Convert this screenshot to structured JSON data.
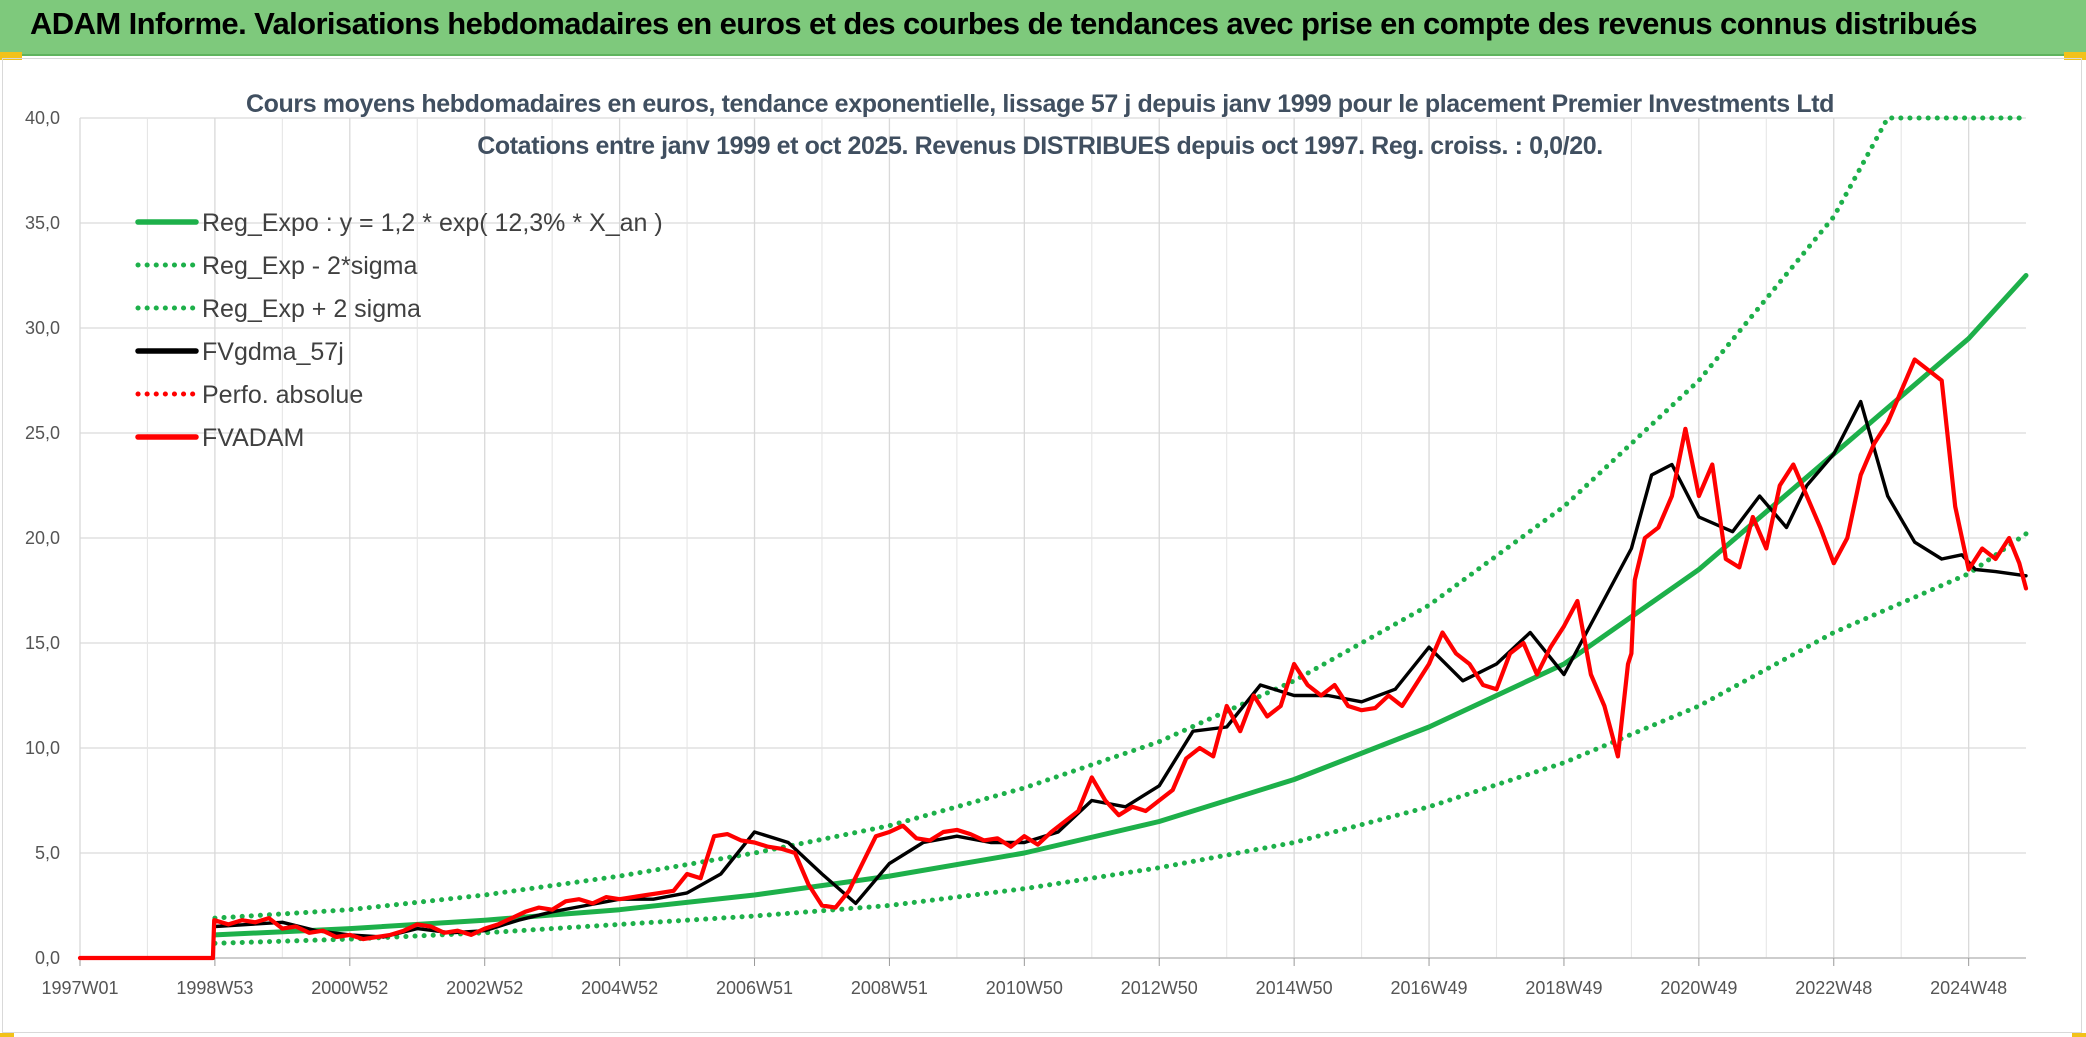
{
  "header": {
    "title": "ADAM Informe. Valorisations hebdomadaires en euros et des courbes de tendances avec prise en compte des revenus connus distribués"
  },
  "chart_data": {
    "type": "line",
    "title": "Cours moyens hebdomadaires en euros, tendance exponentielle, lissage 57 j depuis janv 1999 pour le placement Premier Investments Ltd",
    "subtitle": "Cotations entre janv 1999 et oct 2025. Revenus DISTRIBUES depuis oct 1997. Reg. croiss. : 0,0/20.",
    "xlabel": "",
    "ylabel": "",
    "ylim": [
      0,
      40
    ],
    "xlim": [
      1997.0,
      2025.85
    ],
    "y_ticks": [
      "0,0",
      "5,0",
      "10,0",
      "15,0",
      "20,0",
      "25,0",
      "30,0",
      "35,0",
      "40,0"
    ],
    "y_tick_values": [
      0,
      5,
      10,
      15,
      20,
      25,
      30,
      35,
      40
    ],
    "x_ticks": [
      "1997W01",
      "1998W53",
      "2000W52",
      "2002W52",
      "2004W52",
      "2006W51",
      "2008W51",
      "2010W50",
      "2012W50",
      "2014W50",
      "2016W49",
      "2018W49",
      "2020W49",
      "2022W48",
      "2024W48"
    ],
    "x_tick_values": [
      1997.0,
      1999.0,
      2001.0,
      2003.0,
      2005.0,
      2007.0,
      2009.0,
      2011.0,
      2013.0,
      2015.0,
      2017.0,
      2019.0,
      2021.0,
      2023.0,
      2025.0
    ],
    "grid": true,
    "legend_position": "top-left",
    "colors": {
      "green": "#1db04a",
      "black": "#000000",
      "red": "#ff0000"
    },
    "series": [
      {
        "name": "Reg_Expo : y = 1,2 * exp( 12,3% *  X_an )",
        "color": "#1db04a",
        "style": "solid",
        "x": [
          1999.0,
          2001.0,
          2003.0,
          2005.0,
          2007.0,
          2009.0,
          2011.0,
          2013.0,
          2015.0,
          2017.0,
          2019.0,
          2021.0,
          2023.0,
          2025.0,
          2025.85
        ],
        "y": [
          1.1,
          1.4,
          1.8,
          2.3,
          3.0,
          3.9,
          5.0,
          6.5,
          8.5,
          11.0,
          14.0,
          18.5,
          24.0,
          29.5,
          32.5
        ]
      },
      {
        "name": "Reg_Exp - 2*sigma",
        "color": "#1db04a",
        "style": "dotted",
        "x": [
          1999.0,
          2001.0,
          2003.0,
          2005.0,
          2007.0,
          2009.0,
          2011.0,
          2013.0,
          2015.0,
          2017.0,
          2019.0,
          2021.0,
          2023.0,
          2025.0,
          2025.85
        ],
        "y": [
          0.7,
          0.9,
          1.2,
          1.6,
          2.0,
          2.5,
          3.3,
          4.3,
          5.5,
          7.2,
          9.3,
          12.0,
          15.5,
          18.3,
          20.2
        ]
      },
      {
        "name": "Reg_Exp + 2 sigma",
        "color": "#1db04a",
        "style": "dotted",
        "x": [
          1999.0,
          2001.0,
          2003.0,
          2005.0,
          2007.0,
          2009.0,
          2011.0,
          2013.0,
          2015.0,
          2017.0,
          2019.0,
          2021.0,
          2023.0,
          2023.8,
          2025.85
        ],
        "y": [
          1.9,
          2.3,
          3.0,
          3.9,
          5.0,
          6.3,
          8.1,
          10.3,
          13.2,
          16.8,
          21.5,
          27.5,
          35.3,
          40.0,
          40.0
        ]
      },
      {
        "name": "FVgdma_57j",
        "color": "#000000",
        "style": "solid",
        "x": [
          1999.0,
          1999.5,
          2000.0,
          2000.5,
          2001.0,
          2001.5,
          2002.0,
          2002.5,
          2003.0,
          2003.5,
          2004.0,
          2004.5,
          2005.0,
          2005.5,
          2006.0,
          2006.5,
          2007.0,
          2007.5,
          2008.0,
          2008.5,
          2009.0,
          2009.5,
          2010.0,
          2010.5,
          2011.0,
          2011.5,
          2012.0,
          2012.5,
          2013.0,
          2013.5,
          2014.0,
          2014.5,
          2015.0,
          2015.5,
          2016.0,
          2016.5,
          2017.0,
          2017.5,
          2018.0,
          2018.5,
          2019.0,
          2019.5,
          2020.0,
          2020.3,
          2020.6,
          2021.0,
          2021.5,
          2021.9,
          2022.3,
          2022.6,
          2023.0,
          2023.4,
          2023.8,
          2024.2,
          2024.6,
          2024.9,
          2025.1,
          2025.4,
          2025.85
        ],
        "y": [
          1.5,
          1.6,
          1.7,
          1.3,
          1.1,
          1.0,
          1.4,
          1.2,
          1.3,
          1.8,
          2.2,
          2.5,
          2.8,
          2.8,
          3.1,
          4.0,
          6.0,
          5.5,
          4.0,
          2.6,
          4.5,
          5.5,
          5.8,
          5.5,
          5.5,
          6.0,
          7.5,
          7.2,
          8.2,
          10.8,
          11.0,
          13.0,
          12.5,
          12.5,
          12.2,
          12.8,
          14.8,
          13.2,
          14.0,
          15.5,
          13.5,
          16.5,
          19.5,
          23.0,
          23.5,
          21.0,
          20.3,
          22.0,
          20.5,
          22.5,
          24.0,
          26.5,
          22.0,
          19.8,
          19.0,
          19.2,
          18.5,
          18.4,
          18.2
        ]
      },
      {
        "name": "Perfo. absolue",
        "color": "#ff0000",
        "style": "dotted",
        "x": [],
        "y": []
      },
      {
        "name": "FVADAM",
        "color": "#ff0000",
        "style": "solid",
        "x": [
          1997.0,
          1998.97,
          1998.99,
          1999.2,
          1999.4,
          1999.6,
          1999.8,
          2000.0,
          2000.2,
          2000.4,
          2000.6,
          2000.8,
          2001.0,
          2001.2,
          2001.4,
          2001.6,
          2001.8,
          2002.0,
          2002.2,
          2002.4,
          2002.6,
          2002.8,
          2003.0,
          2003.2,
          2003.4,
          2003.6,
          2003.8,
          2004.0,
          2004.2,
          2004.4,
          2004.6,
          2004.8,
          2005.0,
          2005.2,
          2005.4,
          2005.6,
          2005.8,
          2006.0,
          2006.2,
          2006.4,
          2006.6,
          2006.8,
          2007.0,
          2007.2,
          2007.4,
          2007.6,
          2007.8,
          2008.0,
          2008.2,
          2008.4,
          2008.6,
          2008.8,
          2009.0,
          2009.2,
          2009.4,
          2009.6,
          2009.8,
          2010.0,
          2010.2,
          2010.4,
          2010.6,
          2010.8,
          2011.0,
          2011.2,
          2011.4,
          2011.6,
          2011.8,
          2012.0,
          2012.2,
          2012.4,
          2012.6,
          2012.8,
          2013.0,
          2013.2,
          2013.4,
          2013.6,
          2013.8,
          2014.0,
          2014.2,
          2014.4,
          2014.6,
          2014.8,
          2015.0,
          2015.2,
          2015.4,
          2015.6,
          2015.8,
          2016.0,
          2016.2,
          2016.4,
          2016.6,
          2016.8,
          2017.0,
          2017.2,
          2017.4,
          2017.6,
          2017.8,
          2018.0,
          2018.2,
          2018.4,
          2018.6,
          2018.8,
          2019.0,
          2019.2,
          2019.4,
          2019.6,
          2019.8,
          2019.95,
          2020.0,
          2020.05,
          2020.2,
          2020.4,
          2020.6,
          2020.8,
          2021.0,
          2021.2,
          2021.4,
          2021.6,
          2021.8,
          2022.0,
          2022.2,
          2022.4,
          2022.6,
          2022.8,
          2023.0,
          2023.2,
          2023.4,
          2023.6,
          2023.8,
          2024.0,
          2024.2,
          2024.4,
          2024.6,
          2024.8,
          2025.0,
          2025.2,
          2025.4,
          2025.6,
          2025.75,
          2025.85
        ],
        "y": [
          0,
          0,
          1.8,
          1.6,
          1.8,
          1.7,
          1.9,
          1.4,
          1.5,
          1.2,
          1.3,
          1.0,
          1.1,
          0.9,
          1.0,
          1.1,
          1.3,
          1.6,
          1.5,
          1.2,
          1.3,
          1.1,
          1.4,
          1.6,
          1.9,
          2.2,
          2.4,
          2.3,
          2.7,
          2.8,
          2.6,
          2.9,
          2.8,
          2.9,
          3.0,
          3.1,
          3.2,
          4.0,
          3.8,
          5.8,
          5.9,
          5.6,
          5.5,
          5.3,
          5.2,
          5.0,
          3.5,
          2.5,
          2.4,
          3.2,
          4.5,
          5.8,
          6.0,
          6.3,
          5.7,
          5.6,
          6.0,
          6.1,
          5.9,
          5.6,
          5.7,
          5.3,
          5.8,
          5.4,
          6.0,
          6.5,
          7.0,
          8.6,
          7.5,
          6.8,
          7.2,
          7.0,
          7.5,
          8.0,
          9.5,
          10.0,
          9.6,
          12.0,
          10.8,
          12.5,
          11.5,
          12.0,
          14.0,
          13.0,
          12.5,
          13.0,
          12.0,
          11.8,
          11.9,
          12.5,
          12.0,
          13.0,
          14.0,
          15.5,
          14.5,
          14.0,
          13.0,
          12.8,
          14.5,
          15.0,
          13.5,
          14.8,
          15.8,
          17.0,
          13.5,
          12.0,
          9.6,
          14.0,
          14.5,
          18.0,
          20.0,
          20.5,
          22.0,
          25.2,
          22.0,
          23.5,
          19.0,
          18.6,
          21.0,
          19.5,
          22.5,
          23.5,
          22.0,
          20.5,
          18.8,
          20.0,
          23.0,
          24.5,
          25.5,
          27.0,
          28.5,
          28.0,
          27.5,
          21.5,
          18.5,
          19.5,
          19.0,
          20.0,
          18.8,
          17.6
        ]
      }
    ]
  }
}
